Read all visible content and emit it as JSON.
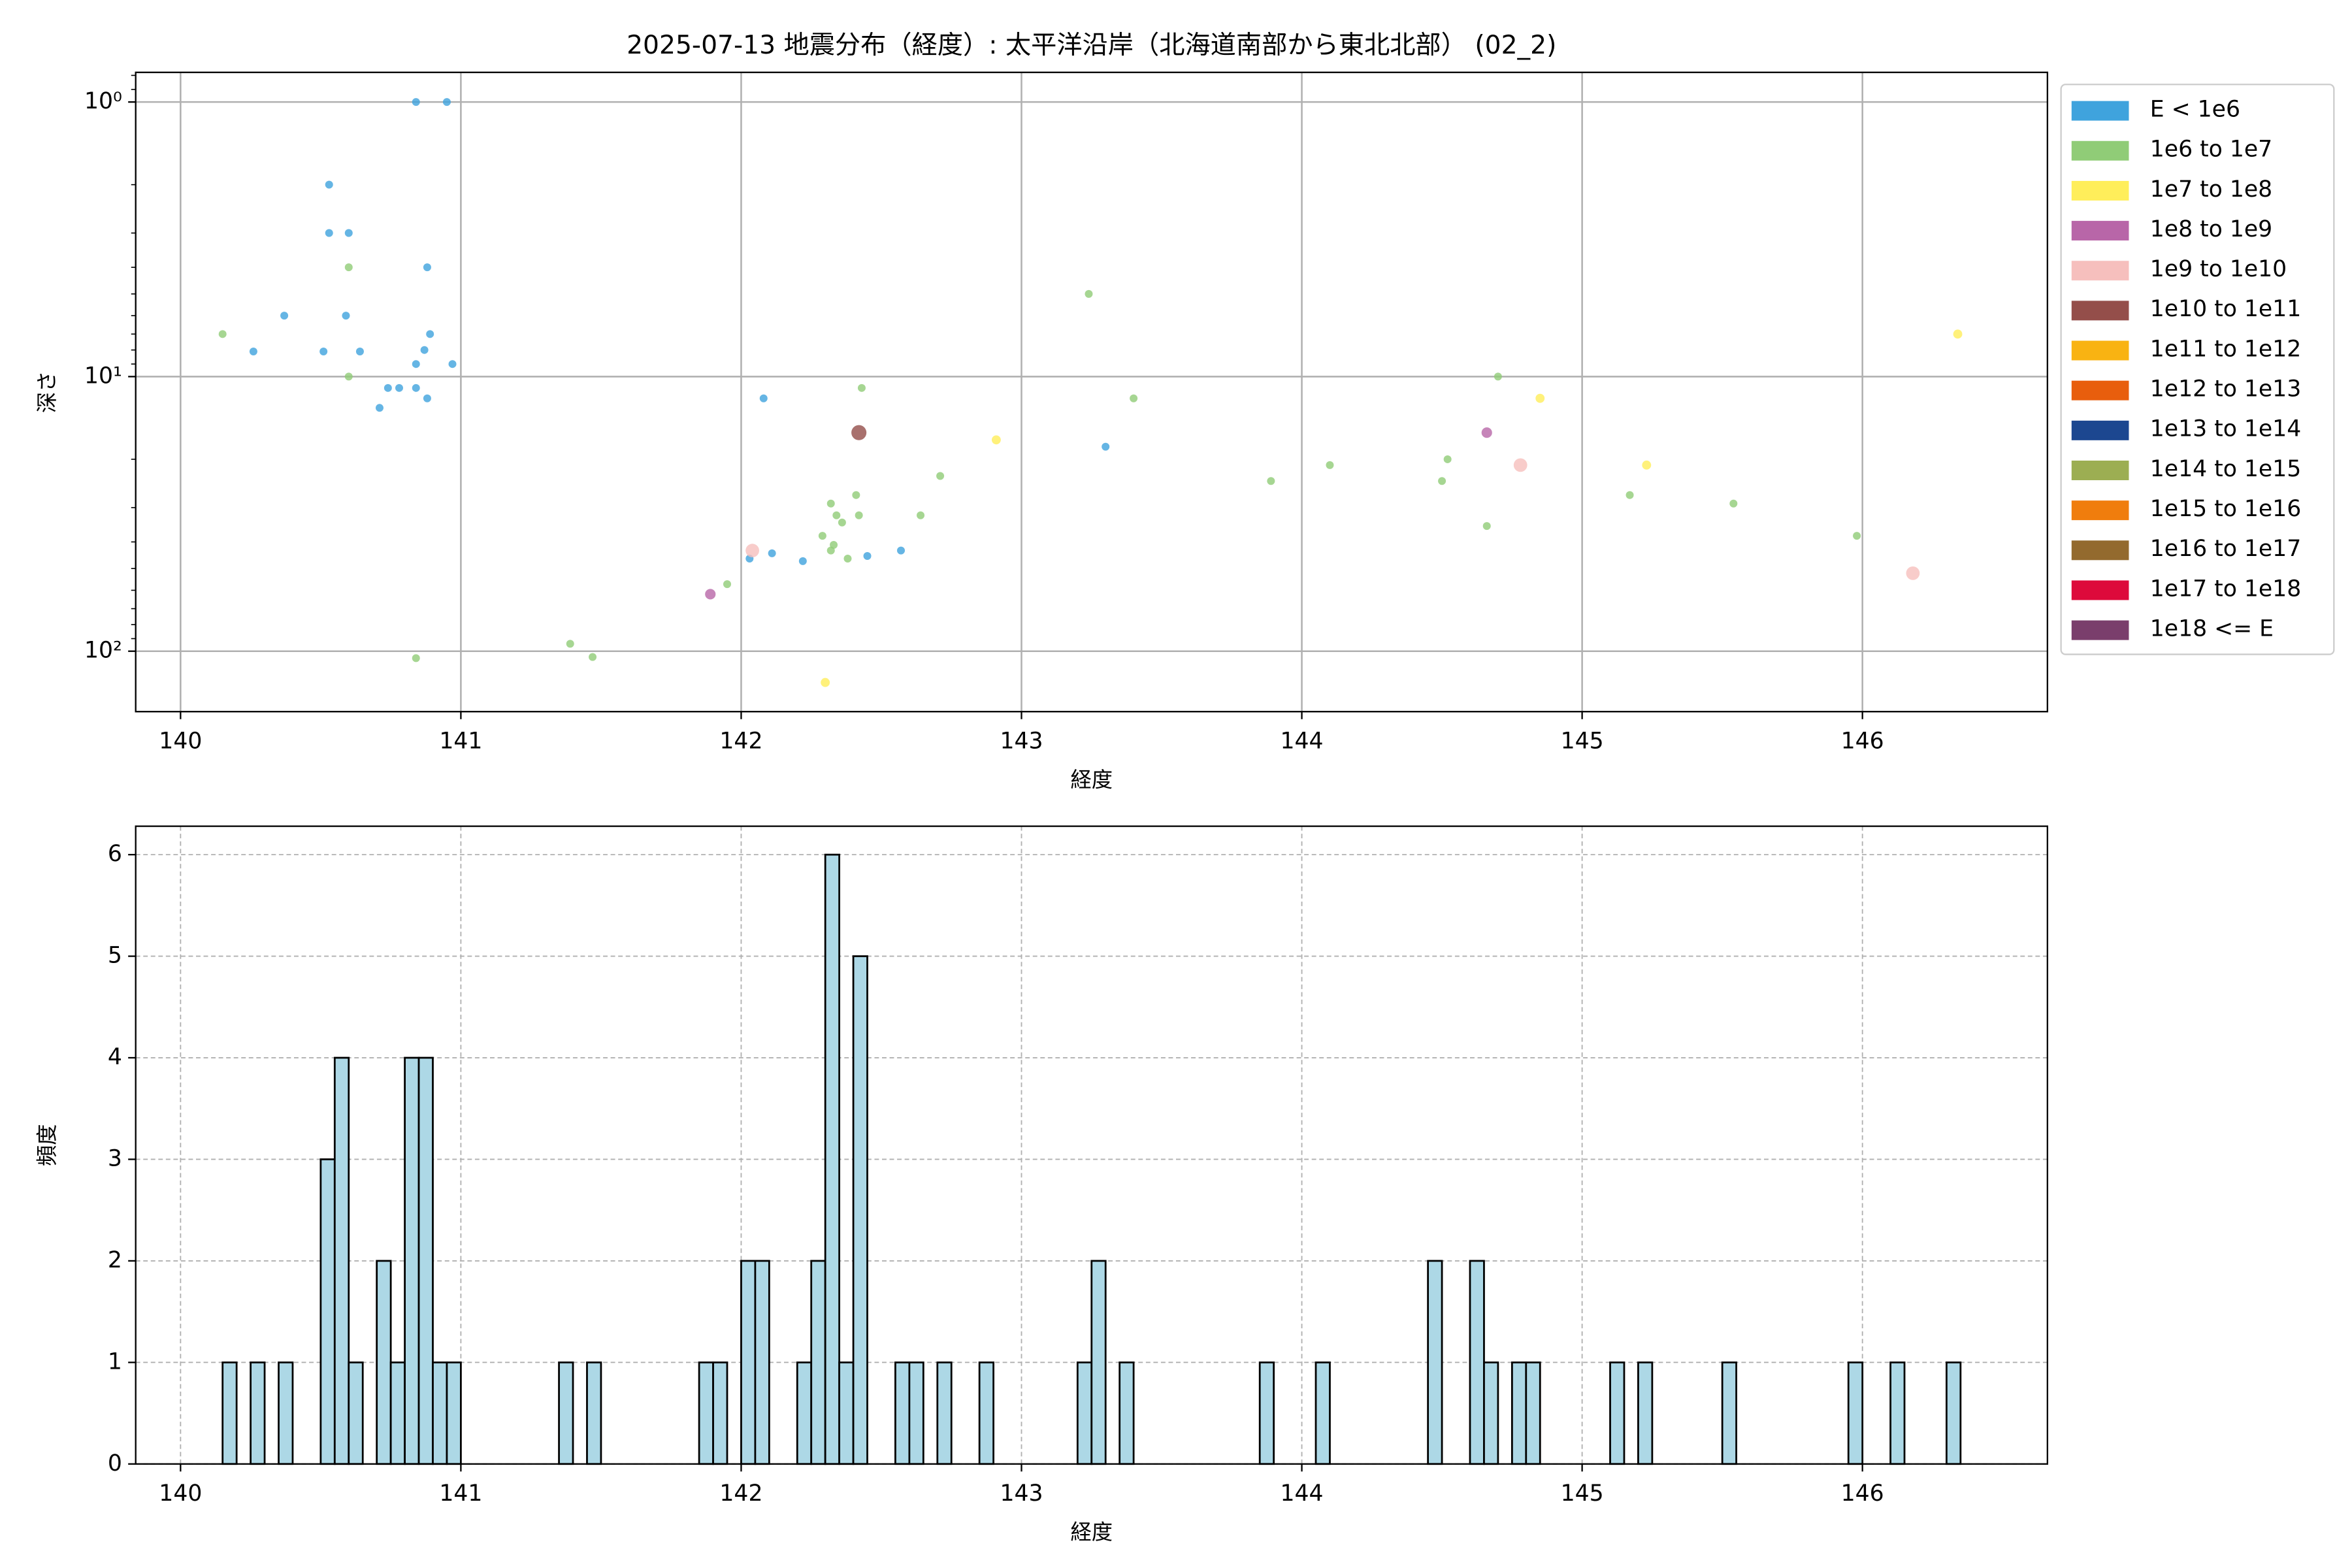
{
  "chart_data": [
    {
      "type": "scatter",
      "title": "2025-07-13 地震分布（経度）: 太平洋沿岸（北海道南部から東北北部） (02_2)",
      "x_label": "経度",
      "y_label": "深さ",
      "xlim": [
        139.84,
        146.66
      ],
      "xticks": [
        140,
        141,
        142,
        143,
        144,
        145,
        146
      ],
      "ylim": [
        0.78,
        166
      ],
      "yscale": "log",
      "yinvert": true,
      "yticks": [
        {
          "value": 1,
          "label": "10⁰"
        },
        {
          "value": 10,
          "label": "10¹"
        },
        {
          "value": 100,
          "label": "10²"
        }
      ],
      "grid": true,
      "legend": "outside right",
      "series": [
        {
          "name": "E < 1e6",
          "color": "#3fa3dd",
          "marker_size": 2.6,
          "x": [
            140.84,
            140.95,
            140.53,
            140.53,
            140.6,
            140.88,
            140.37,
            140.59,
            140.26,
            140.51,
            140.64,
            140.89,
            140.87,
            140.97,
            140.84,
            140.74,
            140.78,
            140.84,
            140.88,
            140.71,
            142.08,
            143.3,
            142.57,
            142.45,
            142.11,
            142.03,
            142.22
          ],
          "values": [
            1,
            1,
            2.0,
            3.0,
            3.0,
            4.0,
            6.0,
            6.0,
            8.1,
            8.1,
            8.1,
            7.0,
            8.0,
            9.0,
            9.0,
            11,
            11,
            11,
            12,
            13,
            12,
            18,
            43,
            45,
            44,
            46,
            47
          ]
        },
        {
          "name": "1e6 to 1e7",
          "color": "#90cc77",
          "marker_size": 2.6,
          "x": [
            140.15,
            140.6,
            140.6,
            140.84,
            143.24,
            142.43,
            143.4,
            144.7,
            142.71,
            143.89,
            144.1,
            144.52,
            144.5,
            144.66,
            145.17,
            145.54,
            145.98,
            142.41,
            142.32,
            142.34,
            142.36,
            142.42,
            142.64,
            142.29,
            142.33,
            142.32,
            142.38,
            141.95,
            141.39,
            141.47
          ],
          "values": [
            7.0,
            4.0,
            10,
            106,
            5.0,
            11,
            12,
            10,
            23,
            24,
            21,
            20,
            24,
            35,
            27,
            29,
            38,
            27,
            29,
            32,
            34,
            32,
            32,
            38,
            41,
            43,
            46,
            57,
            94,
            105
          ]
        },
        {
          "name": "1e7 to 1e8",
          "color": "#ffee5a",
          "marker_size": 3,
          "x": [
            142.91,
            144.85,
            145.23,
            146.34,
            142.3
          ],
          "values": [
            17,
            12,
            21,
            7.0,
            130
          ]
        },
        {
          "name": "1e8 to 1e9",
          "color": "#b866a8",
          "marker_size": 3.5,
          "x": [
            141.89,
            144.66
          ],
          "values": [
            62,
            16
          ]
        },
        {
          "name": "1e9 to 1e10",
          "color": "#f6bfbd",
          "marker_size": 4.5,
          "x": [
            142.04,
            144.78,
            146.18
          ],
          "values": [
            43,
            21,
            52
          ]
        },
        {
          "name": "1e10 to 1e11",
          "color": "#944e4a",
          "marker_size": 5,
          "x": [
            142.42
          ],
          "values": [
            16
          ]
        },
        {
          "name": "1e11 to 1e12",
          "color": "#f9b312",
          "marker_size": 5,
          "x": [],
          "values": []
        },
        {
          "name": "1e12 to 1e13",
          "color": "#e85e0d",
          "marker_size": 5,
          "x": [],
          "values": []
        },
        {
          "name": "1e13 to 1e14",
          "color": "#1c4790",
          "marker_size": 5,
          "x": [],
          "values": []
        },
        {
          "name": "1e14 to 1e15",
          "color": "#9cae52",
          "marker_size": 5,
          "x": [],
          "values": []
        },
        {
          "name": "1e15 to 1e16",
          "color": "#f07d0d",
          "marker_size": 5,
          "x": [],
          "values": []
        },
        {
          "name": "1e16 to 1e17",
          "color": "#936a2e",
          "marker_size": 5,
          "x": [],
          "values": []
        },
        {
          "name": "1e17 to 1e18",
          "color": "#dd0a3b",
          "marker_size": 5,
          "x": [],
          "values": []
        },
        {
          "name": "1e18 <= E",
          "color": "#7a3e6c",
          "marker_size": 5,
          "x": [],
          "values": []
        }
      ]
    },
    {
      "type": "histogram",
      "x_label": "経度",
      "y_label": "頻度",
      "xlim": [
        139.84,
        146.66
      ],
      "xticks": [
        140,
        141,
        142,
        143,
        144,
        145,
        146
      ],
      "ylim": [
        0,
        6.28
      ],
      "yticks": [
        0,
        1,
        2,
        3,
        4,
        5,
        6
      ],
      "grid": true,
      "color": "#add8e6",
      "edgecolor": "#000000",
      "bins": [
        140.15,
        140.2,
        140.25,
        140.3,
        140.35,
        140.4,
        140.45,
        140.5,
        140.55,
        140.6,
        140.65,
        140.7,
        140.75,
        140.8,
        140.85,
        140.9,
        140.95,
        141,
        141.05,
        141.1,
        141.15,
        141.2,
        141.25,
        141.3,
        141.35,
        141.4,
        141.45,
        141.5,
        141.55,
        141.6,
        141.65,
        141.7,
        141.75,
        141.8,
        141.85,
        141.9,
        141.95,
        142,
        142.05,
        142.1,
        142.15,
        142.2,
        142.25,
        142.3,
        142.35,
        142.4,
        142.45,
        142.5,
        142.55,
        142.6,
        142.65,
        142.7,
        142.75,
        142.8,
        142.85,
        142.9,
        142.95,
        143,
        143.05,
        143.1,
        143.15,
        143.2,
        143.25,
        143.3,
        143.35,
        143.4,
        143.45,
        143.5,
        143.55,
        143.6,
        143.65,
        143.7,
        143.75,
        143.8,
        143.85,
        143.9,
        143.95,
        144,
        144.05,
        144.1,
        144.15,
        144.2,
        144.25,
        144.3,
        144.35,
        144.4,
        144.45,
        144.5,
        144.55,
        144.6,
        144.65,
        144.7,
        144.75,
        144.8,
        144.85,
        144.9,
        144.95,
        145,
        145.05,
        145.1,
        145.15,
        145.2,
        145.25,
        145.3,
        145.35,
        145.4,
        145.45,
        145.5,
        145.55,
        145.6,
        145.65,
        145.7,
        145.75,
        145.8,
        145.85,
        145.9,
        145.95,
        146,
        146.05,
        146.1,
        146.15,
        146.2,
        146.25,
        146.3,
        146.35
      ],
      "counts": [
        1,
        0,
        1,
        0,
        1,
        0,
        0,
        3,
        4,
        1,
        0,
        2,
        1,
        4,
        4,
        1,
        1,
        0,
        0,
        0,
        0,
        0,
        0,
        0,
        1,
        0,
        1,
        0,
        0,
        0,
        0,
        0,
        0,
        0,
        1,
        1,
        0,
        2,
        2,
        0,
        0,
        1,
        2,
        6,
        1,
        5,
        0,
        0,
        1,
        1,
        0,
        1,
        0,
        0,
        1,
        0,
        0,
        0,
        0,
        0,
        0,
        1,
        2,
        0,
        1,
        0,
        0,
        0,
        0,
        0,
        0,
        0,
        0,
        0,
        1,
        0,
        0,
        0,
        1,
        0,
        0,
        0,
        0,
        0,
        0,
        0,
        2,
        0,
        0,
        2,
        1,
        0,
        1,
        1,
        0,
        0,
        0,
        0,
        0,
        1,
        0,
        1,
        0,
        0,
        0,
        0,
        0,
        1,
        0,
        0,
        0,
        0,
        0,
        0,
        0,
        0,
        1,
        0,
        0,
        1,
        0,
        0,
        0,
        1
      ]
    }
  ]
}
